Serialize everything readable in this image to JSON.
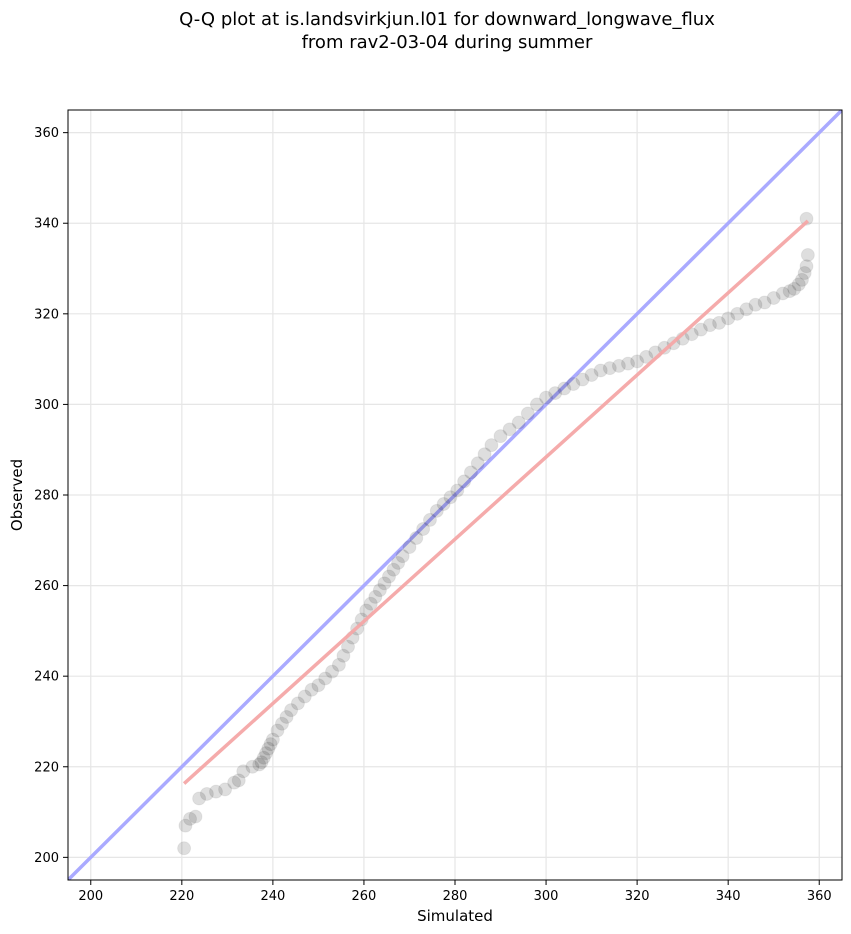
{
  "chart_data": {
    "type": "scatter",
    "title_line1": "Q-Q plot at is.landsvirkjun.l01 for downward_longwave_flux",
    "title_line2": "from rav2-03-04 during summer",
    "xlabel": "Simulated",
    "ylabel": "Observed",
    "xlim": [
      195,
      365
    ],
    "ylim": [
      195,
      365
    ],
    "xticks": [
      200,
      220,
      240,
      260,
      280,
      300,
      320,
      340,
      360
    ],
    "yticks": [
      200,
      220,
      240,
      260,
      280,
      300,
      320,
      340,
      360
    ],
    "grid": true,
    "colors": {
      "points": "#000000",
      "identity_line": "#aaaaff",
      "fit_line": "#f4a6a6",
      "grid": "#e6e6e6"
    },
    "identity_line": {
      "x": [
        195,
        365
      ],
      "y": [
        195,
        365
      ]
    },
    "fit_line": {
      "x": [
        220.5,
        357.5
      ],
      "y": [
        216.3,
        340.5
      ]
    },
    "quantiles": {
      "x": [
        220.5,
        220.8,
        221.8,
        223.0,
        223.8,
        225.5,
        227.5,
        229.5,
        231.5,
        232.5,
        233.5,
        235.5,
        237.0,
        237.5,
        238.0,
        238.5,
        239.0,
        239.5,
        240.0,
        241.0,
        242.0,
        243.0,
        244.0,
        245.5,
        247.0,
        248.5,
        250.0,
        251.5,
        253.0,
        254.5,
        255.5,
        256.5,
        257.5,
        258.5,
        259.5,
        260.5,
        261.5,
        262.5,
        263.5,
        264.5,
        265.5,
        266.5,
        267.5,
        268.5,
        270.0,
        271.5,
        273.0,
        274.5,
        276.0,
        277.5,
        279.0,
        280.5,
        282.0,
        283.5,
        285.0,
        286.5,
        288.0,
        290.0,
        292.0,
        294.0,
        296.0,
        298.0,
        300.0,
        302.0,
        304.0,
        306.0,
        308.0,
        310.0,
        312.0,
        314.0,
        316.0,
        318.0,
        320.0,
        322.0,
        324.0,
        326.0,
        328.0,
        330.0,
        332.0,
        334.0,
        336.0,
        338.0,
        340.0,
        342.0,
        344.0,
        346.0,
        348.0,
        350.0,
        352.0,
        353.5,
        354.5,
        355.5,
        356.2,
        356.8,
        357.2,
        357.5
      ],
      "y": [
        202.0,
        207.0,
        208.5,
        209.0,
        213.0,
        214.0,
        214.5,
        215.0,
        216.5,
        217.0,
        219.0,
        220.0,
        220.5,
        221.0,
        222.0,
        223.0,
        224.0,
        225.0,
        226.0,
        228.0,
        229.5,
        231.0,
        232.5,
        234.0,
        235.5,
        237.0,
        238.0,
        239.5,
        241.0,
        242.5,
        244.5,
        246.5,
        248.5,
        250.5,
        252.5,
        254.5,
        256.0,
        257.5,
        259.0,
        260.5,
        262.0,
        263.5,
        265.0,
        266.5,
        268.5,
        270.5,
        272.5,
        274.5,
        276.5,
        278.0,
        279.5,
        281.0,
        283.0,
        285.0,
        287.0,
        289.0,
        291.0,
        293.0,
        294.5,
        296.0,
        298.0,
        300.0,
        301.5,
        302.5,
        303.5,
        304.5,
        305.5,
        306.5,
        307.5,
        308.0,
        308.5,
        309.0,
        309.5,
        310.5,
        311.5,
        312.5,
        313.5,
        314.5,
        315.5,
        316.5,
        317.5,
        318.0,
        319.0,
        320.0,
        321.0,
        322.0,
        322.5,
        323.5,
        324.5,
        325.0,
        325.5,
        326.5,
        327.5,
        329.0,
        330.5,
        333.0
      ],
      "outlier_x": [
        357.2
      ],
      "outlier_y": [
        341.0
      ]
    }
  }
}
